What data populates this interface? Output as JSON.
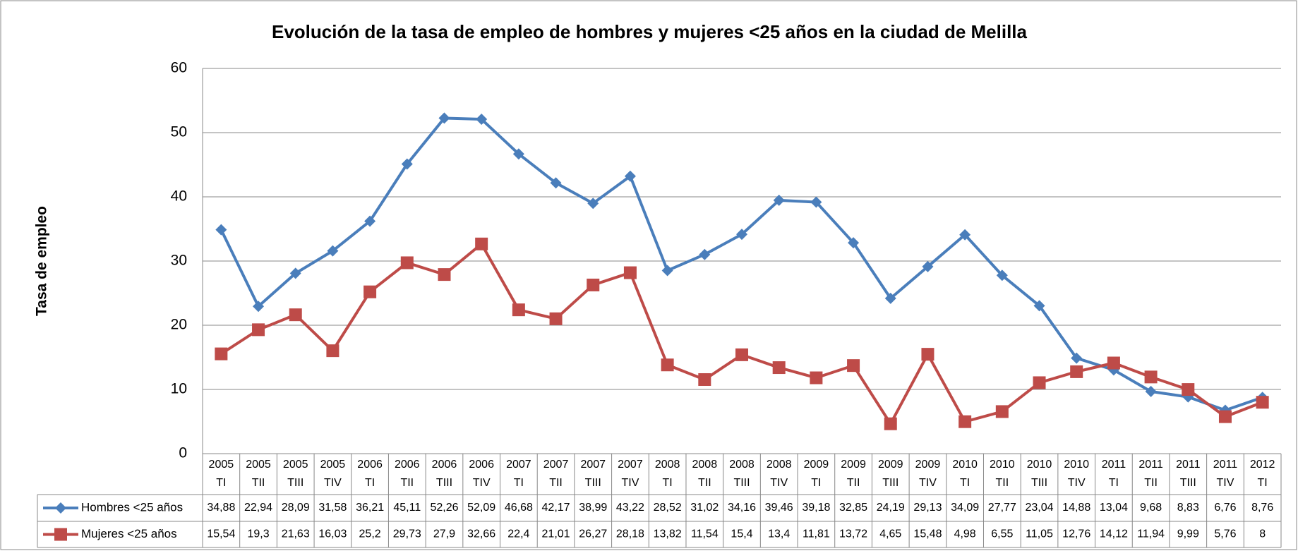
{
  "chart_data": {
    "type": "line",
    "title": "Evolución de la tasa de empleo de hombres y mujeres <25 años en la ciudad de Melilla",
    "y_label": "Tasa de empleo",
    "categories": [
      [
        "2005",
        "TI"
      ],
      [
        "2005",
        "TII"
      ],
      [
        "2005",
        "TIII"
      ],
      [
        "2005",
        "TIV"
      ],
      [
        "2006",
        "TI"
      ],
      [
        "2006",
        "TII"
      ],
      [
        "2006",
        "TIII"
      ],
      [
        "2006",
        "TIV"
      ],
      [
        "2007",
        "TI"
      ],
      [
        "2007",
        "TII"
      ],
      [
        "2007",
        "TIII"
      ],
      [
        "2007",
        "TIV"
      ],
      [
        "2008",
        "TI"
      ],
      [
        "2008",
        "TII"
      ],
      [
        "2008",
        "TIII"
      ],
      [
        "2008",
        "TIV"
      ],
      [
        "2009",
        "TI"
      ],
      [
        "2009",
        "TII"
      ],
      [
        "2009",
        "TIII"
      ],
      [
        "2009",
        "TIV"
      ],
      [
        "2010",
        "TI"
      ],
      [
        "2010",
        "TII"
      ],
      [
        "2010",
        "TIII"
      ],
      [
        "2010",
        "TIV"
      ],
      [
        "2011",
        "TI"
      ],
      [
        "2011",
        "TII"
      ],
      [
        "2011",
        "TIII"
      ],
      [
        "2011",
        "TIV"
      ],
      [
        "2012",
        "TI"
      ]
    ],
    "series": [
      {
        "name": "Hombres <25 años",
        "color": "#4a7ebb",
        "marker": "diamond",
        "values": [
          34.88,
          22.94,
          28.09,
          31.58,
          36.21,
          45.11,
          52.26,
          52.09,
          46.68,
          42.17,
          38.99,
          43.22,
          28.52,
          31.02,
          34.16,
          39.46,
          39.18,
          32.85,
          24.19,
          29.13,
          34.09,
          27.77,
          23.04,
          14.88,
          13.04,
          9.68,
          8.83,
          6.76,
          8.76
        ],
        "value_labels": [
          "34,88",
          "22,94",
          "28,09",
          "31,58",
          "36,21",
          "45,11",
          "52,26",
          "52,09",
          "46,68",
          "42,17",
          "38,99",
          "43,22",
          "28,52",
          "31,02",
          "34,16",
          "39,46",
          "39,18",
          "32,85",
          "24,19",
          "29,13",
          "34,09",
          "27,77",
          "23,04",
          "14,88",
          "13,04",
          "9,68",
          "8,83",
          "6,76",
          "8,76"
        ]
      },
      {
        "name": "Mujeres <25 años",
        "color": "#be4b48",
        "marker": "square",
        "values": [
          15.54,
          19.3,
          21.63,
          16.03,
          25.2,
          29.73,
          27.9,
          32.66,
          22.4,
          21.01,
          26.27,
          28.18,
          13.82,
          11.54,
          15.4,
          13.4,
          11.81,
          13.72,
          4.65,
          15.48,
          4.98,
          6.55,
          11.05,
          12.76,
          14.12,
          11.94,
          9.99,
          5.76,
          8
        ],
        "value_labels": [
          "15,54",
          "19,3",
          "21,63",
          "16,03",
          "25,2",
          "29,73",
          "27,9",
          "32,66",
          "22,4",
          "21,01",
          "26,27",
          "28,18",
          "13,82",
          "11,54",
          "15,4",
          "13,4",
          "11,81",
          "13,72",
          "4,65",
          "15,48",
          "4,98",
          "6,55",
          "11,05",
          "12,76",
          "14,12",
          "11,94",
          "9,99",
          "5,76",
          "8"
        ]
      }
    ],
    "ylim": [
      0,
      60
    ],
    "yticks": [
      0,
      10,
      20,
      30,
      40,
      50,
      60
    ],
    "grid": true
  }
}
